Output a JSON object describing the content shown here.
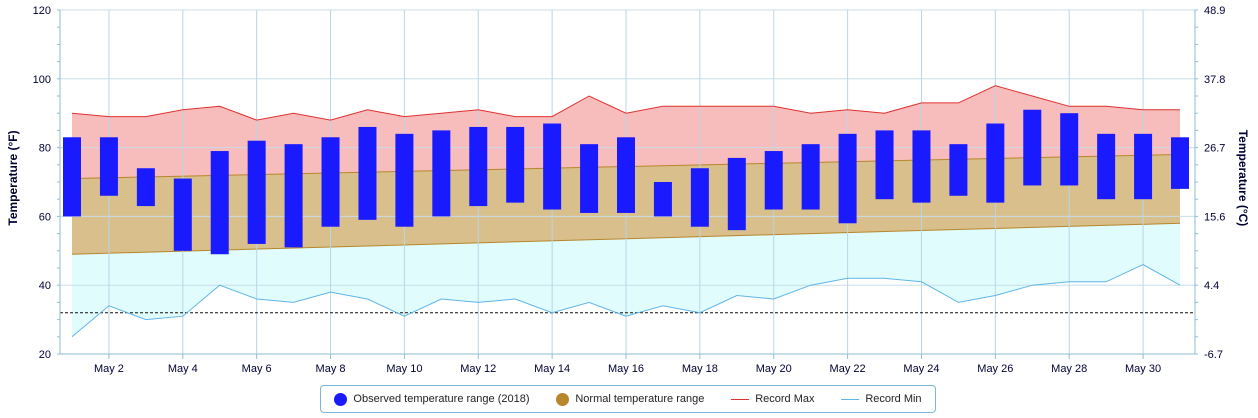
{
  "chart_data": {
    "type": "bar",
    "title": "",
    "xlabel": "",
    "ylabel": "Temperature (°F)",
    "ylabel_right": "Temperature (°C)",
    "ylim": [
      20,
      120
    ],
    "y_ticks": [
      20,
      40,
      60,
      80,
      100,
      120
    ],
    "y_ticks_right": [
      "-6.7",
      "4.4",
      "15.6",
      "26.7",
      "37.8",
      "48.9"
    ],
    "grid": true,
    "legend_position": "bottom",
    "days": [
      1,
      2,
      3,
      4,
      5,
      6,
      7,
      8,
      9,
      10,
      11,
      12,
      13,
      14,
      15,
      16,
      17,
      18,
      19,
      20,
      21,
      22,
      23,
      24,
      25,
      26,
      27,
      28,
      29,
      30,
      31
    ],
    "x_tick_labels": [
      "May 2",
      "May 4",
      "May 6",
      "May 8",
      "May 10",
      "May 12",
      "May 14",
      "May 16",
      "May 18",
      "May 20",
      "May 22",
      "May 24",
      "May 26",
      "May 28",
      "May 30"
    ],
    "x_tick_days": [
      2,
      4,
      6,
      8,
      10,
      12,
      14,
      16,
      18,
      20,
      22,
      24,
      26,
      28,
      30
    ],
    "reference_line": 32,
    "series": [
      {
        "name": "Observed temperature range (2018)",
        "color": "#1a1aff",
        "high": [
          83,
          83,
          74,
          71,
          79,
          82,
          81,
          83,
          86,
          84,
          85,
          86,
          86,
          87,
          81,
          83,
          70,
          74,
          77,
          79,
          81,
          84,
          85,
          85,
          81,
          87,
          91,
          90,
          84,
          84,
          83
        ],
        "low": [
          60,
          66,
          63,
          50,
          49,
          52,
          51,
          57,
          59,
          57,
          60,
          63,
          64,
          62,
          61,
          61,
          60,
          57,
          56,
          62,
          62,
          58,
          65,
          64,
          66,
          64,
          69,
          69,
          65,
          65,
          68
        ]
      },
      {
        "name": "Normal temperature range",
        "color": "#b8862b",
        "high_start": 71,
        "high_end": 78,
        "low_start": 49,
        "low_end": 58
      },
      {
        "name": "Record Max",
        "color": "#e03030",
        "values": [
          90,
          89,
          89,
          91,
          92,
          88,
          90,
          88,
          91,
          89,
          90,
          91,
          89,
          89,
          95,
          90,
          92,
          92,
          92,
          92,
          90,
          91,
          90,
          93,
          93,
          98,
          95,
          92,
          92,
          91,
          91
        ]
      },
      {
        "name": "Record Min",
        "color": "#5fb5e8",
        "values": [
          25,
          34,
          30,
          31,
          40,
          36,
          35,
          38,
          36,
          31,
          36,
          35,
          36,
          32,
          35,
          31,
          34,
          32,
          37,
          36,
          40,
          42,
          42,
          41,
          35,
          37,
          40,
          41,
          41,
          46,
          40
        ]
      }
    ]
  },
  "legend": {
    "observed": "Observed temperature range (2018)",
    "normal": "Normal temperature range",
    "record_max": "Record Max",
    "record_min": "Record Min"
  }
}
